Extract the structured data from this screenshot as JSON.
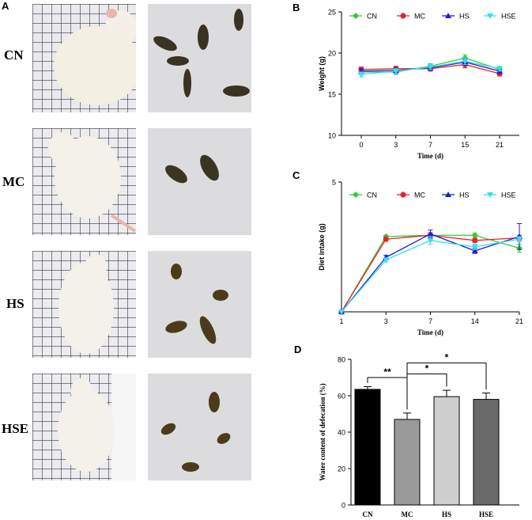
{
  "panel_labels": {
    "a": "A",
    "b": "B",
    "c": "C",
    "d": "D"
  },
  "groups": [
    "CN",
    "MC",
    "HS",
    "HSE"
  ],
  "colors": {
    "CN": "#33cc33",
    "MC": "#e8232a",
    "HS": "#1e1ed6",
    "HSE": "#33e0f0",
    "bar_CN": "#000000",
    "bar_MC": "#9a9a9a",
    "bar_HS": "#cfcfcf",
    "bar_HSE": "#6a6a6a"
  },
  "chart_data": [
    {
      "id": "B",
      "type": "line",
      "x": [
        "0",
        "3",
        "7",
        "15",
        "21"
      ],
      "xlabel": "Time (d)",
      "ylabel": "Weight (g)",
      "ylim": [
        10,
        25
      ],
      "yticks": [
        "10",
        "15",
        "20",
        "25"
      ],
      "legend": "top",
      "series": [
        {
          "name": "CN",
          "values": [
            17.7,
            17.7,
            18.4,
            19.4,
            18.0
          ],
          "err": [
            0.3,
            0.3,
            0.3,
            0.4,
            0.3
          ]
        },
        {
          "name": "MC",
          "values": [
            18.0,
            18.1,
            18.1,
            18.6,
            17.5
          ],
          "err": [
            0.3,
            0.3,
            0.3,
            0.4,
            0.3
          ]
        },
        {
          "name": "HS",
          "values": [
            17.8,
            17.9,
            18.2,
            18.9,
            17.8
          ],
          "err": [
            0.3,
            0.3,
            0.3,
            0.4,
            0.3
          ]
        },
        {
          "name": "HSE",
          "values": [
            17.4,
            17.8,
            18.3,
            19.0,
            18.1
          ],
          "err": [
            0.3,
            0.3,
            0.3,
            0.4,
            0.3
          ]
        }
      ]
    },
    {
      "id": "C",
      "type": "line",
      "x": [
        "1",
        "3",
        "7",
        "14",
        "21"
      ],
      "xlabel": "Time (d)",
      "ylabel": "Diet intake  (g)",
      "ylim": [
        0,
        5
      ],
      "yticks": [
        "5"
      ],
      "legend": "top",
      "series": [
        {
          "name": "CN",
          "values": [
            0,
            2.9,
            2.95,
            2.95,
            2.45
          ],
          "err": [
            0,
            0.05,
            0.1,
            0.08,
            0.15
          ]
        },
        {
          "name": "MC",
          "values": [
            0,
            2.8,
            2.95,
            2.75,
            2.85
          ],
          "err": [
            0,
            0.05,
            0.1,
            0.08,
            0.1
          ]
        },
        {
          "name": "HS",
          "values": [
            0,
            2.1,
            3.0,
            2.35,
            2.9
          ],
          "err": [
            0,
            0.08,
            0.15,
            0.1,
            0.5
          ]
        },
        {
          "name": "HSE",
          "values": [
            0,
            2.0,
            2.75,
            2.5,
            2.8
          ],
          "err": [
            0,
            0.08,
            0.15,
            0.1,
            0.1
          ]
        }
      ]
    },
    {
      "id": "D",
      "type": "bar",
      "categories": [
        "CN",
        "MC",
        "HS",
        "HSE"
      ],
      "values": [
        63.5,
        47,
        59.5,
        58
      ],
      "err": [
        1.5,
        3.5,
        3.5,
        3.5
      ],
      "ylabel": "Water content of defecation (%)",
      "ylim": [
        0,
        80
      ],
      "yticks": [
        "0",
        "20",
        "40",
        "60",
        "80"
      ],
      "significance": [
        {
          "from": "CN",
          "to": "MC",
          "label": "**"
        },
        {
          "from": "MC",
          "to": "HS",
          "label": "*"
        },
        {
          "from": "MC",
          "to": "HSE",
          "label": "*"
        }
      ]
    }
  ]
}
